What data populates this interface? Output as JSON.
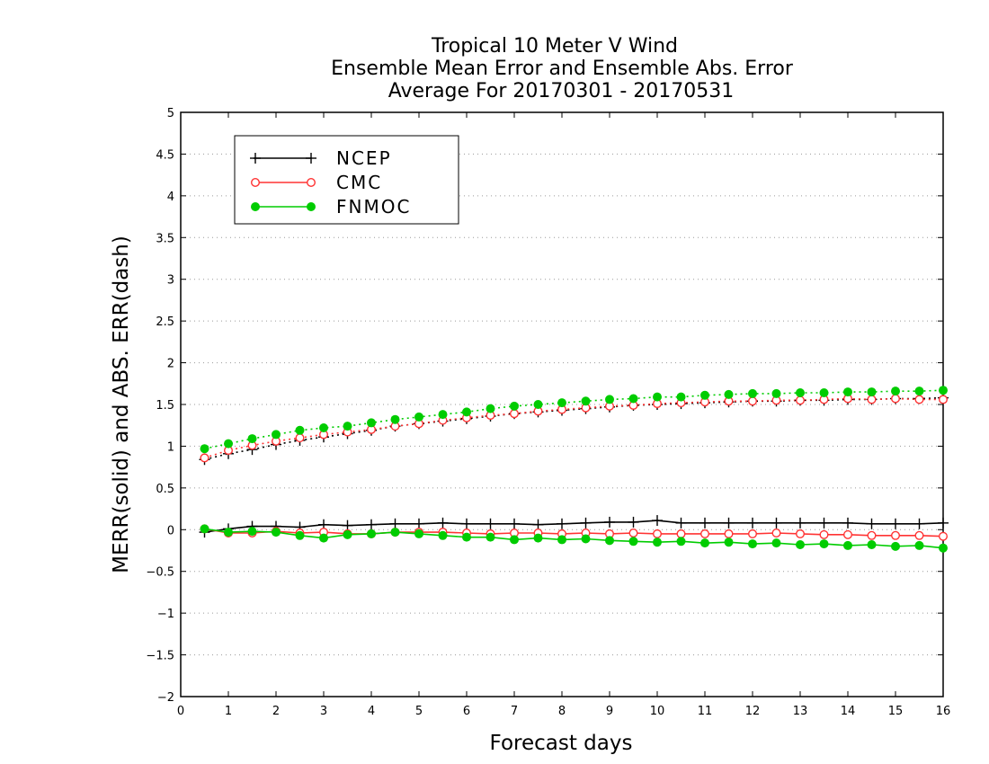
{
  "chart_data": {
    "type": "line",
    "title": [
      "Tropical 10 Meter V Wind",
      "Ensemble Mean Error and Ensemble Abs. Error",
      "Average For 20170301 - 20170531"
    ],
    "xlabel": "Forecast days",
    "ylabel": "MERR(solid) and ABS. ERR(dash)",
    "xlim": [
      0,
      16
    ],
    "ylim": [
      -2,
      5
    ],
    "xticks": [
      "0",
      "1",
      "2",
      "3",
      "4",
      "5",
      "6",
      "7",
      "8",
      "9",
      "10",
      "11",
      "12",
      "13",
      "14",
      "15",
      "16"
    ],
    "yticks": [
      "−2",
      "−1.5",
      "−1",
      "−0.5",
      "0",
      "0.5",
      "1",
      "1.5",
      "2",
      "2.5",
      "3",
      "3.5",
      "4",
      "4.5",
      "5"
    ],
    "grid": "horizontal dotted",
    "legend_position": "top-left",
    "x": [
      0.5,
      1,
      1.5,
      2,
      2.5,
      3,
      3.5,
      4,
      4.5,
      5,
      5.5,
      6,
      6.5,
      7,
      7.5,
      8,
      8.5,
      9,
      9.5,
      10,
      10.5,
      11,
      11.5,
      12,
      12.5,
      13,
      13.5,
      14,
      14.5,
      15,
      15.5,
      16
    ],
    "series": [
      {
        "name": "NCEP",
        "color": "#000000",
        "marker": "plus",
        "merr": [
          -0.03,
          0.01,
          0.04,
          0.04,
          0.03,
          0.06,
          0.05,
          0.06,
          0.07,
          0.07,
          0.08,
          0.07,
          0.07,
          0.07,
          0.06,
          0.07,
          0.08,
          0.09,
          0.09,
          0.11,
          0.08,
          0.08,
          0.08,
          0.08,
          0.08,
          0.08,
          0.08,
          0.08,
          0.07,
          0.07,
          0.07,
          0.08
        ],
        "abs_err": [
          0.84,
          0.91,
          0.96,
          1.02,
          1.07,
          1.11,
          1.15,
          1.19,
          1.24,
          1.27,
          1.3,
          1.33,
          1.36,
          1.39,
          1.41,
          1.43,
          1.45,
          1.47,
          1.49,
          1.5,
          1.51,
          1.52,
          1.53,
          1.54,
          1.54,
          1.55,
          1.55,
          1.56,
          1.56,
          1.57,
          1.57,
          1.58
        ]
      },
      {
        "name": "CMC",
        "color": "#ff3333",
        "marker": "open-circle",
        "merr": [
          0.01,
          -0.04,
          -0.04,
          -0.02,
          -0.04,
          -0.03,
          -0.05,
          -0.05,
          -0.03,
          -0.03,
          -0.03,
          -0.04,
          -0.05,
          -0.04,
          -0.04,
          -0.05,
          -0.04,
          -0.05,
          -0.04,
          -0.05,
          -0.05,
          -0.05,
          -0.05,
          -0.05,
          -0.04,
          -0.05,
          -0.06,
          -0.06,
          -0.07,
          -0.07,
          -0.07,
          -0.08
        ],
        "abs_err": [
          0.86,
          0.95,
          1.01,
          1.06,
          1.1,
          1.14,
          1.17,
          1.2,
          1.24,
          1.27,
          1.31,
          1.34,
          1.37,
          1.39,
          1.42,
          1.44,
          1.46,
          1.48,
          1.49,
          1.51,
          1.52,
          1.53,
          1.54,
          1.54,
          1.55,
          1.55,
          1.56,
          1.57,
          1.56,
          1.57,
          1.56,
          1.56
        ]
      },
      {
        "name": "FNMOC",
        "color": "#00cc00",
        "marker": "filled-circle",
        "merr": [
          0.01,
          -0.03,
          -0.02,
          -0.03,
          -0.07,
          -0.1,
          -0.06,
          -0.05,
          -0.03,
          -0.05,
          -0.07,
          -0.09,
          -0.09,
          -0.12,
          -0.1,
          -0.12,
          -0.11,
          -0.13,
          -0.14,
          -0.15,
          -0.14,
          -0.16,
          -0.15,
          -0.17,
          -0.16,
          -0.18,
          -0.17,
          -0.19,
          -0.18,
          -0.2,
          -0.19,
          -0.22
        ],
        "abs_err": [
          0.97,
          1.03,
          1.09,
          1.14,
          1.19,
          1.22,
          1.24,
          1.28,
          1.32,
          1.35,
          1.38,
          1.41,
          1.45,
          1.48,
          1.5,
          1.52,
          1.54,
          1.56,
          1.57,
          1.59,
          1.59,
          1.61,
          1.62,
          1.63,
          1.63,
          1.64,
          1.64,
          1.65,
          1.65,
          1.66,
          1.66,
          1.67
        ]
      }
    ]
  }
}
